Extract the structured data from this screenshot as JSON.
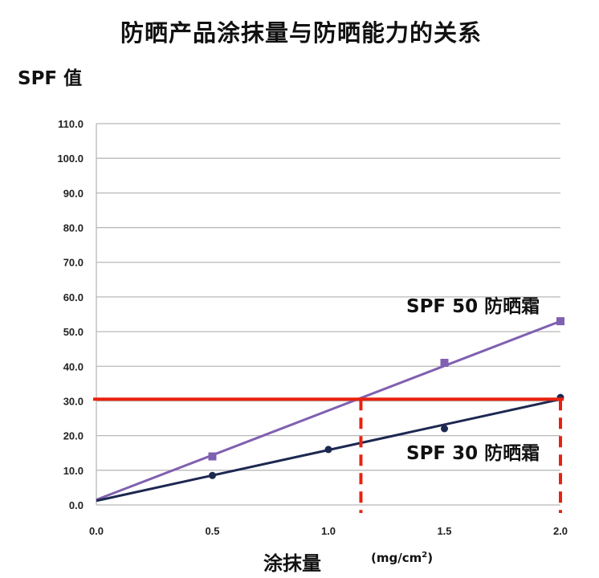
{
  "title": "防晒产品涂抹量与防晒能力的关系",
  "ylabel": "SPF 值",
  "xlabel": "涂抹量",
  "xunit_main": "(mg/cm",
  "xunit_sup": "2",
  "xunit_close": ")",
  "colors": {
    "spf50": "#8060b0",
    "spf30": "#1c2850",
    "reference": "#e8220e",
    "grid": "#b8b8b8"
  },
  "chart_data": {
    "type": "line",
    "x_ticks": [
      "0.0",
      "0.5",
      "1.0",
      "1.5",
      "2.0"
    ],
    "y_ticks": [
      "0.0",
      "10.0",
      "20.0",
      "30.0",
      "40.0",
      "50.0",
      "60.0",
      "70.0",
      "80.0",
      "90.0",
      "100.0",
      "110.0"
    ],
    "xlim": [
      0,
      2
    ],
    "ylim": [
      0,
      110
    ],
    "grid": true,
    "series": [
      {
        "name": "SPF 50 防晒霜",
        "points": [
          [
            0.5,
            14
          ],
          [
            1.5,
            41
          ],
          [
            2.0,
            53
          ]
        ],
        "fit": [
          [
            0,
            1.5
          ],
          [
            2.0,
            53
          ]
        ]
      },
      {
        "name": "SPF 30 防晒霜",
        "points": [
          [
            0.5,
            8.5
          ],
          [
            1.0,
            16
          ],
          [
            1.5,
            22
          ],
          [
            2.0,
            31
          ]
        ],
        "fit": [
          [
            0,
            1.2
          ],
          [
            2.0,
            30.5
          ]
        ]
      }
    ],
    "reference": {
      "y": 30.5,
      "x_drops": [
        1.14,
        2.0
      ]
    }
  }
}
